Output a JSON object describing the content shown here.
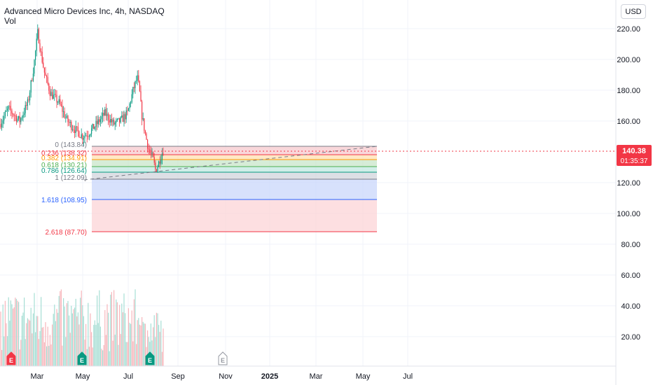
{
  "header": {
    "title": "Advanced Micro Devices Inc, 4h, NASDAQ",
    "volume_label": "Vol"
  },
  "currency_button": "USD",
  "price_axis": {
    "ticks": [
      "220.00",
      "200.00",
      "180.00",
      "160.00",
      "120.00",
      "100.00",
      "80.00",
      "60.00",
      "40.00",
      "20.00"
    ]
  },
  "time_axis": {
    "labels": [
      "Mar",
      "May",
      "Jul",
      "Sep",
      "Nov",
      "2025",
      "Mar",
      "May",
      "Jul"
    ]
  },
  "current_price": {
    "value": "140.38",
    "countdown": "01:35:37",
    "color": "#f23645"
  },
  "fib_levels": [
    {
      "label": "0 (143.84)",
      "color": "#787b86"
    },
    {
      "label": "0.236 (138.32)",
      "color": "#f23645"
    },
    {
      "label": "0.382 (134.91)",
      "color": "#ff9800"
    },
    {
      "label": "0.618 (130.21)",
      "color": "#4caf50"
    },
    {
      "label": "0.786 (126.64)",
      "color": "#089981"
    },
    {
      "label": "1 (122.09)",
      "color": "#787b86"
    },
    {
      "label": "1.618 (108.95)",
      "color": "#2962ff"
    },
    {
      "label": "2.618 (87.70)",
      "color": "#f23645"
    }
  ],
  "earnings_markers": [
    {
      "letter": "E",
      "state": "negative",
      "color": "#f23645"
    },
    {
      "letter": "E",
      "state": "positive",
      "color": "#089981"
    },
    {
      "letter": "E",
      "state": "positive",
      "color": "#089981"
    },
    {
      "letter": "E",
      "state": "upcoming",
      "color": "#9598a1"
    }
  ],
  "colors": {
    "up": "#089981",
    "down": "#f23645",
    "grid": "#f0f3fa",
    "axis_text": "#131722"
  }
}
